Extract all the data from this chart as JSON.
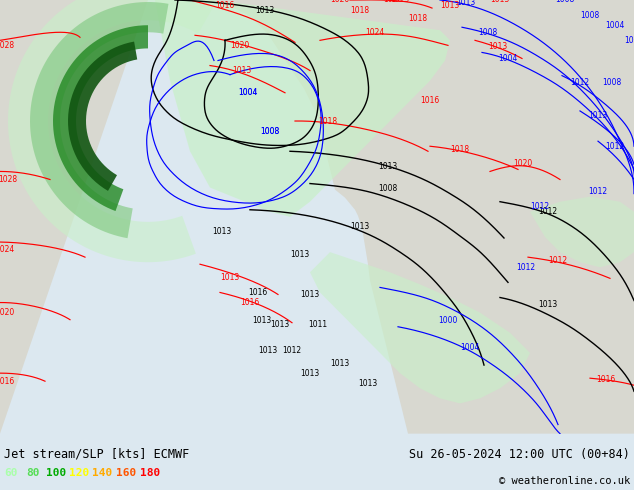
{
  "title_left": "Jet stream/SLP [kts] ECMWF",
  "title_right": "Su 26-05-2024 12:00 UTC (00+84)",
  "copyright": "© weatheronline.co.uk",
  "legend_values": [
    60,
    80,
    100,
    120,
    140,
    160,
    180
  ],
  "legend_colors": [
    "#aaffaa",
    "#55dd55",
    "#00aa00",
    "#ffff00",
    "#ffaa00",
    "#ff5500",
    "#ff0000"
  ],
  "bg_color": "#dce8f0",
  "land_color": "#d8d8d0",
  "ocean_color": "#dce8f0",
  "figsize": [
    6.34,
    4.9
  ],
  "dpi": 100,
  "bottom_bg": "#dce8f0",
  "map_green_light": "#c8f0c8",
  "map_green_mid": "#88cc88",
  "map_green_dark": "#228822"
}
